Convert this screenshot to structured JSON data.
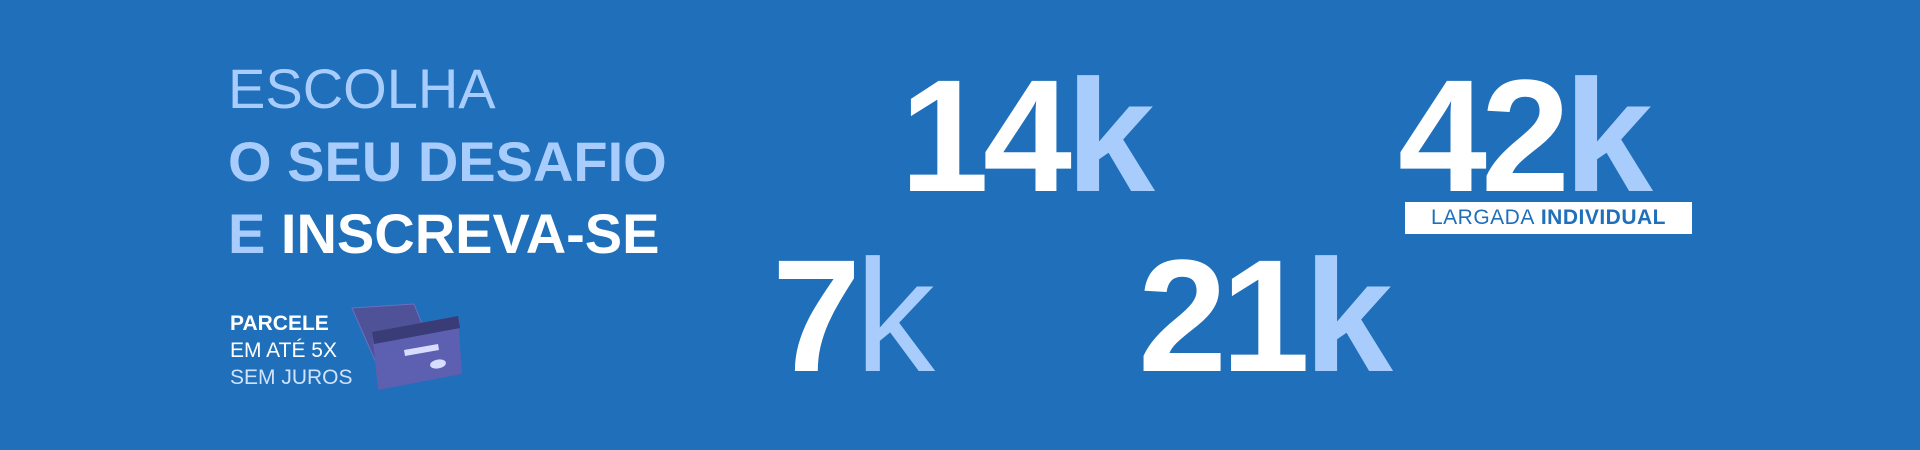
{
  "headline": {
    "line1": "ESCOLHA",
    "line2": "O SEU DESAFIO",
    "line3_accent": "E",
    "line3_rest": "INSCREVA-SE"
  },
  "installment": {
    "line1": "PARCELE",
    "line2": "EM ATÉ 5X",
    "line3": "SEM JUROS"
  },
  "distances": [
    {
      "number": "14",
      "unit": "k"
    },
    {
      "number": "42",
      "unit": "k"
    },
    {
      "number": "7",
      "unit": "k"
    },
    {
      "number": "21",
      "unit": "k"
    }
  ],
  "badge": {
    "regular": "LARGADA",
    "bold": "INDIVIDUAL"
  },
  "colors": {
    "background": "#1f6fba",
    "accent_light_blue": "#a8cdfd",
    "white": "#ffffff",
    "card_purple": "#5a5aa8"
  },
  "icons": [
    "credit-card-icon"
  ]
}
